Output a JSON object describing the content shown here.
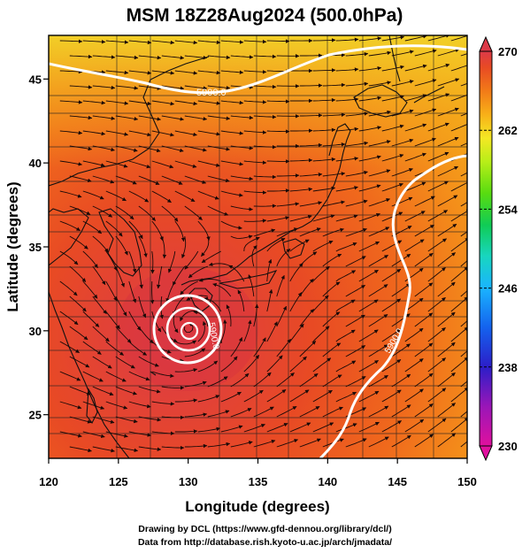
{
  "title": "MSM 18Z28Aug2024 (500.0hPa)",
  "axes": {
    "xlabel": "Longitude (degrees)",
    "ylabel": "Latitude  (degrees)",
    "x_ticks": [
      "120",
      "125",
      "130",
      "135",
      "140",
      "145",
      "150"
    ],
    "y_ticks": [
      "25",
      "30",
      "35",
      "40",
      "45"
    ],
    "lon_range": [
      120,
      150
    ],
    "lat_range": [
      22.4,
      47.6
    ],
    "gridlines": true
  },
  "contours": [
    {
      "label": "5900.0"
    },
    {
      "label": "5900.0"
    },
    {
      "label": "5900.0"
    }
  ],
  "colorbar": {
    "ticks": [
      "270",
      "262",
      "254",
      "246",
      "238",
      "230"
    ],
    "min": 230,
    "max": 270,
    "colors": [
      "#e0109e",
      "#9a16b8",
      "#2c1ec8",
      "#1462ee",
      "#1ab4ff",
      "#18d6c0",
      "#10cc55",
      "#58dc10",
      "#b8ee18",
      "#f4e824",
      "#f8b018",
      "#f27a18",
      "#e84a24",
      "#dc3a48"
    ]
  },
  "credits": {
    "line1": "Drawing by DCL (https://www.gfd-dennou.org/library/dcl/)",
    "line2": "Data from http://database.rish.kyoto-u.ac.jp/arch/jmadata/"
  }
}
